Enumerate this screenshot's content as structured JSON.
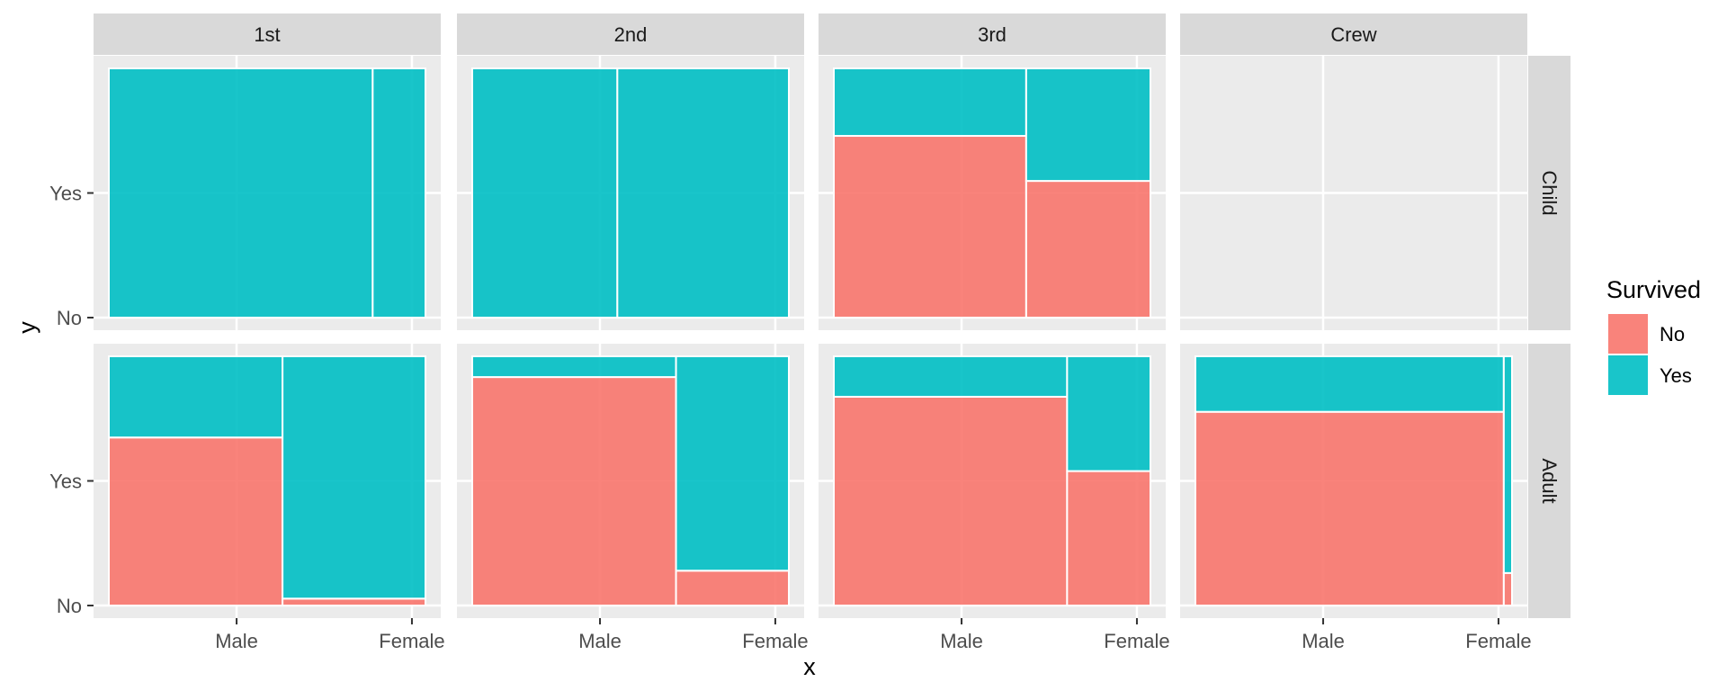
{
  "chart_data": {
    "type": "mosaic",
    "xlabel": "x",
    "ylabel": "y",
    "column_facets": [
      "1st",
      "2nd",
      "3rd",
      "Crew"
    ],
    "row_facets": [
      "Child",
      "Adult"
    ],
    "x_ticks": [
      "Male",
      "Female"
    ],
    "y_ticks": [
      "No",
      "Yes"
    ],
    "legend": {
      "title": "Survived",
      "entries": [
        {
          "label": "No",
          "color": "#F8766D"
        },
        {
          "label": "Yes",
          "color": "#00BFC4"
        }
      ],
      "position": "right"
    },
    "colors": {
      "No": "#F8766D",
      "Yes": "#00BFC4"
    },
    "cells": [
      {
        "row": "Child",
        "col": "1st",
        "Male": {
          "No": 0,
          "Yes": 5
        },
        "Female": {
          "No": 0,
          "Yes": 1
        }
      },
      {
        "row": "Child",
        "col": "2nd",
        "Male": {
          "No": 0,
          "Yes": 11
        },
        "Female": {
          "No": 0,
          "Yes": 13
        }
      },
      {
        "row": "Child",
        "col": "3rd",
        "Male": {
          "No": 35,
          "Yes": 13
        },
        "Female": {
          "No": 17,
          "Yes": 14
        }
      },
      {
        "row": "Child",
        "col": "Crew",
        "Male": {
          "No": 0,
          "Yes": 0
        },
        "Female": {
          "No": 0,
          "Yes": 0
        }
      },
      {
        "row": "Adult",
        "col": "1st",
        "Male": {
          "No": 118,
          "Yes": 57
        },
        "Female": {
          "No": 4,
          "Yes": 140
        }
      },
      {
        "row": "Adult",
        "col": "2nd",
        "Male": {
          "No": 154,
          "Yes": 14
        },
        "Female": {
          "No": 13,
          "Yes": 80
        }
      },
      {
        "row": "Adult",
        "col": "3rd",
        "Male": {
          "No": 387,
          "Yes": 75
        },
        "Female": {
          "No": 89,
          "Yes": 76
        }
      },
      {
        "row": "Adult",
        "col": "Crew",
        "Male": {
          "No": 670,
          "Yes": 192
        },
        "Female": {
          "No": 3,
          "Yes": 20
        }
      }
    ],
    "grid": true
  }
}
